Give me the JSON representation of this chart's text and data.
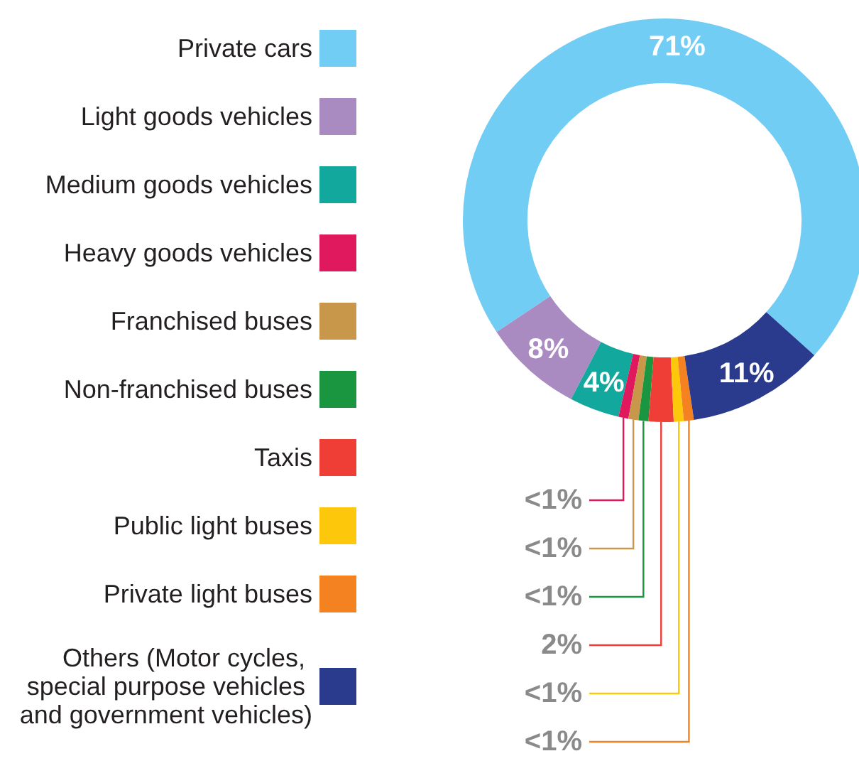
{
  "chart_data": {
    "type": "donut",
    "categories": [
      "Private cars",
      "Light goods vehicles",
      "Medium goods vehicles",
      "Heavy goods vehicles",
      "Franchised buses",
      "Non-franchised buses",
      "Taxis",
      "Public light buses",
      "Private light buses",
      "Others (Motor cycles, special purpose vehicles and government vehicles)"
    ],
    "values": [
      71,
      8,
      4,
      0.8,
      0.8,
      0.8,
      2,
      0.8,
      0.8,
      11
    ],
    "value_labels": [
      "71%",
      "8%",
      "4%",
      "<1%",
      "<1%",
      "<1%",
      "2%",
      "<1%",
      "<1%",
      "11%"
    ],
    "colors": [
      "#72cdf4",
      "#a98bc2",
      "#12a89d",
      "#e0185e",
      "#c9974a",
      "#1a9641",
      "#ef3e36",
      "#fdc70b",
      "#f58220",
      "#2a3a8c"
    ],
    "legend": "left"
  }
}
